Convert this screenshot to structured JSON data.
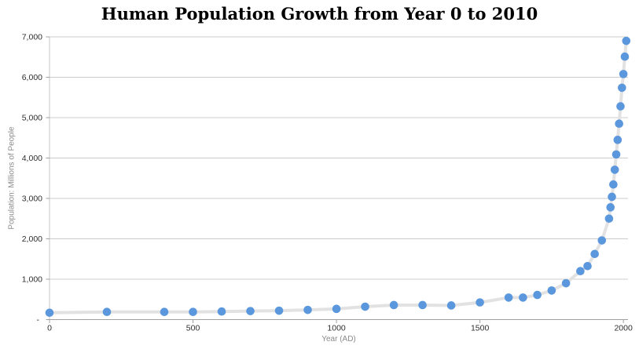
{
  "chart_data": {
    "type": "scatter",
    "title": "Human Population Growth from Year 0 to 2010",
    "xlabel": "Year (AD)",
    "ylabel": "Population: Millions of People",
    "legend": "none",
    "grid": "horizontal",
    "xlim": [
      0,
      2016
    ],
    "ylim": [
      0,
      7000
    ],
    "x_ticks": [
      {
        "value": 0,
        "label": "0"
      },
      {
        "value": 500,
        "label": "500"
      },
      {
        "value": 1000,
        "label": "1000"
      },
      {
        "value": 1500,
        "label": "1500"
      },
      {
        "value": 2000,
        "label": "2000"
      }
    ],
    "y_ticks": [
      {
        "value": 0,
        "label": "-"
      },
      {
        "value": 1000,
        "label": "1,000"
      },
      {
        "value": 2000,
        "label": "2,000"
      },
      {
        "value": 3000,
        "label": "3,000"
      },
      {
        "value": 4000,
        "label": "4,000"
      },
      {
        "value": 5000,
        "label": "5,000"
      },
      {
        "value": 6000,
        "label": "6,000"
      },
      {
        "value": 7000,
        "label": "7,000"
      }
    ],
    "points": [
      {
        "year": 0,
        "population": 170
      },
      {
        "year": 200,
        "population": 190
      },
      {
        "year": 400,
        "population": 190
      },
      {
        "year": 500,
        "population": 190
      },
      {
        "year": 600,
        "population": 200
      },
      {
        "year": 700,
        "population": 210
      },
      {
        "year": 800,
        "population": 220
      },
      {
        "year": 900,
        "population": 240
      },
      {
        "year": 1000,
        "population": 265
      },
      {
        "year": 1100,
        "population": 320
      },
      {
        "year": 1200,
        "population": 360
      },
      {
        "year": 1300,
        "population": 360
      },
      {
        "year": 1400,
        "population": 350
      },
      {
        "year": 1500,
        "population": 425
      },
      {
        "year": 1600,
        "population": 545
      },
      {
        "year": 1650,
        "population": 545
      },
      {
        "year": 1700,
        "population": 610
      },
      {
        "year": 1750,
        "population": 720
      },
      {
        "year": 1800,
        "population": 900
      },
      {
        "year": 1850,
        "population": 1200
      },
      {
        "year": 1875,
        "population": 1325
      },
      {
        "year": 1900,
        "population": 1625
      },
      {
        "year": 1925,
        "population": 1960
      },
      {
        "year": 1950,
        "population": 2500
      },
      {
        "year": 1955,
        "population": 2780
      },
      {
        "year": 1960,
        "population": 3040
      },
      {
        "year": 1965,
        "population": 3345
      },
      {
        "year": 1970,
        "population": 3710
      },
      {
        "year": 1975,
        "population": 4090
      },
      {
        "year": 1980,
        "population": 4450
      },
      {
        "year": 1985,
        "population": 4850
      },
      {
        "year": 1990,
        "population": 5280
      },
      {
        "year": 1995,
        "population": 5740
      },
      {
        "year": 2000,
        "population": 6080
      },
      {
        "year": 2005,
        "population": 6510
      },
      {
        "year": 2010,
        "population": 6900
      }
    ],
    "colors": {
      "background": "#ffffff",
      "title": "#000000",
      "marker": "#5b97dd",
      "series_line": "#e2e2e2",
      "gridline": "#cccccc",
      "y_axis_line": "#c4c4c4",
      "x_axis_line": "#a0a0a0",
      "tick_mark": "#a0a0a0",
      "tick_label": "#2e2e2e",
      "axis_title": "#8a8a8a"
    }
  }
}
